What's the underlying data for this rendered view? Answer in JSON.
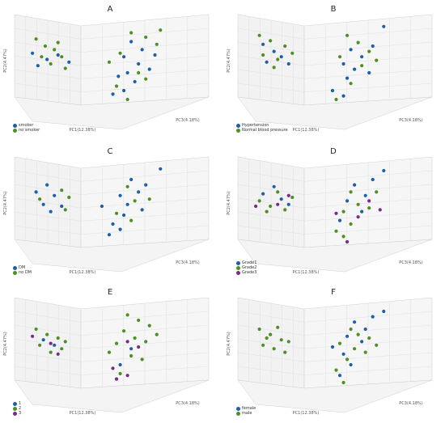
{
  "colors": {
    "blue": "#1f5fa8",
    "green": "#4f8f23",
    "purple": "#7a2a8a",
    "grid": "#dcdcdc",
    "pane": "#f2f2f2"
  },
  "chart_data": [
    {
      "type": "scatter",
      "panel": "A",
      "xlabel": "PC1(12.38%)",
      "ylabel": "PC2(4.47%)",
      "zlabel": "PC3(4.18%)",
      "legend": [
        "smoker",
        "no smoker"
      ],
      "legend_placement": "bottom-left",
      "grid": true,
      "series": [
        {
          "name": "smoker",
          "color": "#1f5fa8",
          "points": [
            [
              0.08,
              0.62
            ],
            [
              0.16,
              0.55
            ],
            [
              0.22,
              0.6
            ],
            [
              0.28,
              0.52
            ],
            [
              0.11,
              0.48
            ],
            [
              0.62,
              0.75
            ],
            [
              0.58,
              0.58
            ],
            [
              0.66,
              0.5
            ],
            [
              0.72,
              0.44
            ],
            [
              0.6,
              0.4
            ],
            [
              0.55,
              0.36
            ],
            [
              0.64,
              0.3
            ],
            [
              0.58,
              0.2
            ],
            [
              0.52,
              0.16
            ],
            [
              0.68,
              0.66
            ],
            [
              0.75,
              0.6
            ]
          ]
        },
        {
          "name": "no smoker",
          "color": "#4f8f23",
          "points": [
            [
              0.1,
              0.78
            ],
            [
              0.15,
              0.7
            ],
            [
              0.2,
              0.66
            ],
            [
              0.24,
              0.58
            ],
            [
              0.18,
              0.5
            ],
            [
              0.26,
              0.45
            ],
            [
              0.13,
              0.58
            ],
            [
              0.22,
              0.74
            ],
            [
              0.62,
              0.85
            ],
            [
              0.7,
              0.8
            ],
            [
              0.76,
              0.72
            ],
            [
              0.5,
              0.52
            ],
            [
              0.66,
              0.4
            ],
            [
              0.7,
              0.33
            ],
            [
              0.54,
              0.25
            ],
            [
              0.6,
              0.1
            ],
            [
              0.78,
              0.88
            ],
            [
              0.56,
              0.62
            ]
          ]
        }
      ]
    },
    {
      "type": "scatter",
      "panel": "B",
      "xlabel": "PC1(12.38%)",
      "ylabel": "PC2(4.47%)",
      "zlabel": "PC3(4.18%)",
      "legend": [
        "Hypertension",
        "Normal blood pressure"
      ],
      "legend_placement": "bottom-left",
      "grid": true,
      "series": [
        {
          "name": "Hypertension",
          "color": "#1f5fa8",
          "points": [
            [
              0.12,
              0.72
            ],
            [
              0.18,
              0.64
            ],
            [
              0.22,
              0.58
            ],
            [
              0.14,
              0.52
            ],
            [
              0.26,
              0.5
            ],
            [
              0.6,
              0.66
            ],
            [
              0.66,
              0.58
            ],
            [
              0.56,
              0.5
            ],
            [
              0.62,
              0.44
            ],
            [
              0.7,
              0.4
            ],
            [
              0.58,
              0.34
            ],
            [
              0.5,
              0.2
            ],
            [
              0.56,
              0.14
            ],
            [
              0.78,
              0.92
            ],
            [
              0.72,
              0.7
            ]
          ]
        },
        {
          "name": "Normal blood pressure",
          "color": "#4f8f23",
          "points": [
            [
              0.1,
              0.82
            ],
            [
              0.16,
              0.76
            ],
            [
              0.24,
              0.7
            ],
            [
              0.2,
              0.55
            ],
            [
              0.28,
              0.62
            ],
            [
              0.12,
              0.6
            ],
            [
              0.18,
              0.46
            ],
            [
              0.58,
              0.82
            ],
            [
              0.64,
              0.74
            ],
            [
              0.7,
              0.64
            ],
            [
              0.54,
              0.58
            ],
            [
              0.66,
              0.48
            ],
            [
              0.6,
              0.28
            ],
            [
              0.52,
              0.1
            ],
            [
              0.74,
              0.54
            ]
          ]
        }
      ]
    },
    {
      "type": "scatter",
      "panel": "C",
      "xlabel": "PC1(12.38%)",
      "ylabel": "PC2(4.47%)",
      "zlabel": "PC3(4.18%)",
      "legend": [
        "DM",
        "no DM"
      ],
      "legend_placement": "bottom-left",
      "grid": true,
      "series": [
        {
          "name": "DM",
          "color": "#1f5fa8",
          "points": [
            [
              0.1,
              0.66
            ],
            [
              0.16,
              0.74
            ],
            [
              0.2,
              0.62
            ],
            [
              0.14,
              0.52
            ],
            [
              0.24,
              0.5
            ],
            [
              0.18,
              0.44
            ],
            [
              0.62,
              0.8
            ],
            [
              0.7,
              0.74
            ],
            [
              0.66,
              0.66
            ],
            [
              0.56,
              0.62
            ],
            [
              0.6,
              0.52
            ],
            [
              0.68,
              0.46
            ],
            [
              0.58,
              0.4
            ],
            [
              0.52,
              0.3
            ],
            [
              0.56,
              0.24
            ],
            [
              0.5,
              0.18
            ],
            [
              0.78,
              0.92
            ],
            [
              0.46,
              0.5
            ]
          ]
        },
        {
          "name": "no DM",
          "color": "#4f8f23",
          "points": [
            [
              0.24,
              0.68
            ],
            [
              0.28,
              0.6
            ],
            [
              0.12,
              0.58
            ],
            [
              0.26,
              0.46
            ],
            [
              0.64,
              0.56
            ],
            [
              0.72,
              0.58
            ],
            [
              0.54,
              0.42
            ],
            [
              0.62,
              0.34
            ],
            [
              0.6,
              0.72
            ]
          ]
        }
      ]
    },
    {
      "type": "scatter",
      "panel": "D",
      "xlabel": "PC1(12.38%)",
      "ylabel": "PC2(4.47%)",
      "zlabel": "PC3(4.18%)",
      "legend": [
        "Grade1",
        "Grade2",
        "Grade3"
      ],
      "legend_placement": "bottom-left",
      "grid": true,
      "series": [
        {
          "name": "Grade1",
          "color": "#1f5fa8",
          "points": [
            [
              0.12,
              0.64
            ],
            [
              0.18,
              0.72
            ],
            [
              0.22,
              0.58
            ],
            [
              0.26,
              0.52
            ],
            [
              0.62,
              0.74
            ],
            [
              0.68,
              0.62
            ],
            [
              0.58,
              0.56
            ],
            [
              0.66,
              0.44
            ],
            [
              0.54,
              0.34
            ],
            [
              0.78,
              0.9
            ],
            [
              0.72,
              0.8
            ]
          ]
        },
        {
          "name": "Grade2",
          "color": "#4f8f23",
          "points": [
            [
              0.1,
              0.56
            ],
            [
              0.16,
              0.5
            ],
            [
              0.2,
              0.66
            ],
            [
              0.28,
              0.6
            ],
            [
              0.14,
              0.44
            ],
            [
              0.24,
              0.46
            ],
            [
              0.6,
              0.66
            ],
            [
              0.64,
              0.52
            ],
            [
              0.7,
              0.48
            ],
            [
              0.56,
              0.44
            ],
            [
              0.6,
              0.3
            ],
            [
              0.52,
              0.22
            ],
            [
              0.56,
              0.16
            ],
            [
              0.74,
              0.66
            ]
          ]
        },
        {
          "name": "Grade3",
          "color": "#7a2a8a",
          "points": [
            [
              0.08,
              0.5
            ],
            [
              0.2,
              0.52
            ],
            [
              0.26,
              0.62
            ],
            [
              0.52,
              0.42
            ],
            [
              0.7,
              0.56
            ],
            [
              0.64,
              0.38
            ],
            [
              0.58,
              0.1
            ],
            [
              0.76,
              0.46
            ]
          ]
        }
      ]
    },
    {
      "type": "scatter",
      "panel": "E",
      "xlabel": "PC1(12.38%)",
      "ylabel": "PC2(4.47%)",
      "zlabel": "PC3(4.18%)",
      "legend": [
        "1",
        "2",
        "3"
      ],
      "legend_placement": "bottom-left",
      "grid": true,
      "series": [
        {
          "name": "1",
          "color": "#1f5fa8",
          "points": [
            [
              0.14,
              0.58
            ],
            [
              0.2,
              0.52
            ],
            [
              0.62,
              0.48
            ],
            [
              0.56,
              0.3
            ]
          ]
        },
        {
          "name": "2",
          "color": "#4f8f23",
          "points": [
            [
              0.1,
              0.7
            ],
            [
              0.16,
              0.64
            ],
            [
              0.22,
              0.6
            ],
            [
              0.12,
              0.52
            ],
            [
              0.24,
              0.48
            ],
            [
              0.18,
              0.44
            ],
            [
              0.26,
              0.56
            ],
            [
              0.6,
              0.86
            ],
            [
              0.66,
              0.8
            ],
            [
              0.72,
              0.74
            ],
            [
              0.58,
              0.68
            ],
            [
              0.64,
              0.6
            ],
            [
              0.7,
              0.56
            ],
            [
              0.54,
              0.54
            ],
            [
              0.62,
              0.4
            ],
            [
              0.68,
              0.36
            ],
            [
              0.5,
              0.44
            ],
            [
              0.76,
              0.64
            ],
            [
              0.56,
              0.2
            ]
          ]
        },
        {
          "name": "3",
          "color": "#7a2a8a",
          "points": [
            [
              0.08,
              0.62
            ],
            [
              0.18,
              0.54
            ],
            [
              0.22,
              0.42
            ],
            [
              0.66,
              0.5
            ],
            [
              0.6,
              0.56
            ],
            [
              0.54,
              0.14
            ],
            [
              0.6,
              0.18
            ],
            [
              0.52,
              0.26
            ]
          ]
        }
      ]
    },
    {
      "type": "scatter",
      "panel": "F",
      "xlabel": "PC1(12.38%)",
      "ylabel": "PC2(4.47%)",
      "zlabel": "PC3(4.18%)",
      "legend": [
        "female",
        "male"
      ],
      "legend_placement": "bottom-left",
      "grid": true,
      "series": [
        {
          "name": "female",
          "color": "#1f5fa8",
          "points": [
            [
              0.62,
              0.78
            ],
            [
              0.68,
              0.7
            ],
            [
              0.58,
              0.62
            ],
            [
              0.66,
              0.56
            ],
            [
              0.5,
              0.5
            ],
            [
              0.56,
              0.42
            ],
            [
              0.6,
              0.3
            ],
            [
              0.54,
              0.18
            ],
            [
              0.78,
              0.9
            ],
            [
              0.72,
              0.84
            ]
          ]
        },
        {
          "name": "male",
          "color": "#4f8f23",
          "points": [
            [
              0.1,
              0.7
            ],
            [
              0.16,
              0.64
            ],
            [
              0.22,
              0.58
            ],
            [
              0.12,
              0.52
            ],
            [
              0.26,
              0.56
            ],
            [
              0.18,
              0.48
            ],
            [
              0.24,
              0.44
            ],
            [
              0.2,
              0.72
            ],
            [
              0.14,
              0.6
            ],
            [
              0.6,
              0.7
            ],
            [
              0.64,
              0.64
            ],
            [
              0.7,
              0.6
            ],
            [
              0.54,
              0.54
            ],
            [
              0.62,
              0.48
            ],
            [
              0.68,
              0.44
            ],
            [
              0.58,
              0.36
            ],
            [
              0.52,
              0.24
            ],
            [
              0.56,
              0.1
            ],
            [
              0.74,
              0.52
            ]
          ]
        }
      ]
    }
  ]
}
